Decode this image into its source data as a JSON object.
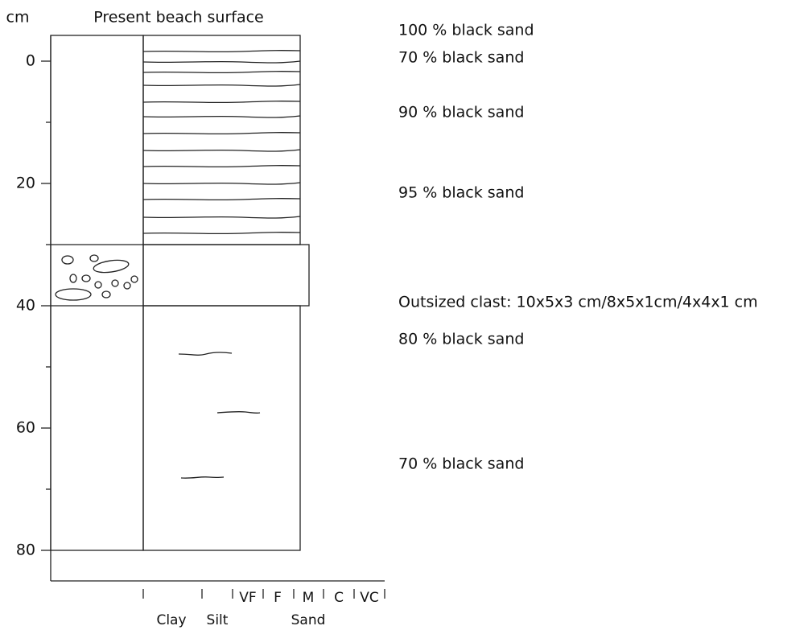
{
  "header": {
    "unit": "cm",
    "title": "Present beach surface"
  },
  "depth_axis": {
    "ticks": [
      0,
      20,
      40,
      60,
      80
    ]
  },
  "grain_size": {
    "sand_classes": [
      "VF",
      "F",
      "M",
      "C",
      "VC"
    ],
    "groups": [
      "Clay",
      "Silt",
      "Sand"
    ]
  },
  "annotations": [
    "100 % black sand",
    "70 % black sand",
    "90 % black sand",
    "95 % black sand",
    "Outsized clast:  10x5x3 cm/8x5x1cm/4x4x1 cm",
    "80 % black sand",
    "70 % black sand"
  ]
}
